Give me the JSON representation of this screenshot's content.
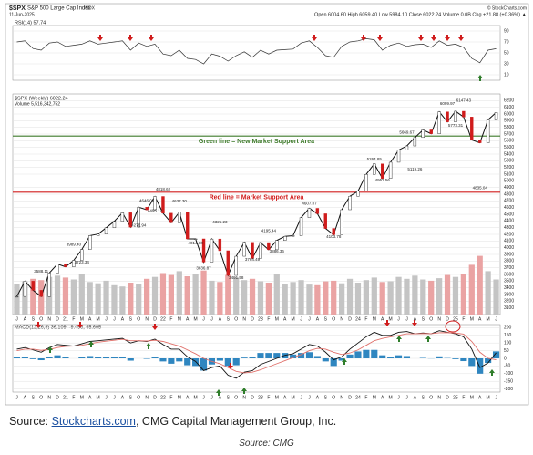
{
  "header": {
    "symbol": "$SPX",
    "name": "S&P 500 Large Cap Index",
    "exchange": "INDX",
    "date": "11-Jun-2025",
    "credit": "© StockCharts.com",
    "quote": "Open 6004.60 High 6059.40 Low 5984.10 Close 6022.24 Volume 0.0B Chg +21.88 (+0.36%) ▲"
  },
  "chart_data": [
    {
      "type": "line",
      "title": "RSI(14) 57.74",
      "color": "#333333",
      "values": [
        70,
        72,
        58,
        55,
        68,
        70,
        62,
        64,
        66,
        72,
        66,
        68,
        70,
        72,
        55,
        68,
        62,
        66,
        48,
        45,
        55,
        40,
        38,
        30,
        48,
        44,
        35,
        45,
        52,
        42,
        55,
        48,
        55,
        56,
        57,
        68,
        72,
        60,
        45,
        42,
        62,
        70,
        72,
        76,
        74,
        55,
        64,
        68,
        62,
        65,
        66,
        60,
        72,
        64,
        66,
        60,
        40,
        32,
        55,
        57.74
      ],
      "ylim": [
        0,
        100
      ],
      "yticks": [
        10,
        30,
        50,
        70,
        90
      ]
    },
    {
      "type": "line",
      "title": "$SPX (Weekly) 6022.24",
      "subtitle": "Volume 5,516,342,752",
      "color": "#111111",
      "categories": [
        "J",
        "A",
        "S",
        "O",
        "N",
        "D",
        "21",
        "F",
        "M",
        "A",
        "M",
        "J",
        "J",
        "A",
        "S",
        "O",
        "N",
        "D",
        "22",
        "F",
        "M",
        "A",
        "M",
        "J",
        "J",
        "A",
        "S",
        "O",
        "N",
        "D",
        "23",
        "F",
        "M",
        "A",
        "M",
        "J",
        "J",
        "A",
        "S",
        "O",
        "N",
        "D",
        "24",
        "F",
        "M",
        "A",
        "M",
        "J",
        "J",
        "A",
        "S",
        "O",
        "N",
        "D",
        "25",
        "F",
        "M",
        "A",
        "M",
        "J"
      ],
      "values": [
        3271,
        3500,
        3363,
        3270,
        3622,
        3756,
        3714,
        3811,
        3973,
        4181,
        4204,
        4298,
        4395,
        4523,
        4308,
        4605,
        4567,
        4766,
        4516,
        4374,
        4530,
        4132,
        4132,
        3785,
        4130,
        3955,
        3586,
        3872,
        4080,
        3840,
        4077,
        3970,
        4109,
        4169,
        4180,
        4450,
        4589,
        4508,
        4288,
        4194,
        4568,
        4770,
        4846,
        5096,
        5254,
        5036,
        5278,
        5460,
        5522,
        5648,
        5762,
        5705,
        6032,
        5882,
        6041,
        5955,
        5612,
        5569,
        5912,
        6022.24
      ],
      "volume": [
        4.8,
        5.2,
        5.6,
        5.4,
        5.9,
        6.1,
        5.8,
        5.5,
        6.4,
        5.1,
        4.9,
        5.3,
        4.6,
        4.4,
        5.0,
        4.8,
        5.6,
        5.9,
        6.5,
        6.2,
        6.8,
        6.0,
        6.4,
        6.9,
        5.3,
        5.1,
        6.2,
        5.8,
        5.4,
        5.6,
        5.2,
        5.0,
        6.3,
        4.8,
        5.1,
        5.4,
        4.7,
        4.6,
        5.2,
        5.3,
        4.9,
        5.6,
        5.0,
        5.4,
        5.8,
        5.1,
        5.2,
        5.9,
        5.6,
        6.1,
        5.5,
        5.3,
        5.7,
        6.2,
        5.9,
        6.3,
        7.8,
        9.2,
        6.8,
        5.5
      ],
      "ylim": [
        3000,
        6300
      ],
      "yticks": [
        3100,
        3200,
        3300,
        3400,
        3500,
        3600,
        3700,
        3800,
        3900,
        4000,
        4100,
        4200,
        4300,
        4400,
        4500,
        4600,
        4700,
        4800,
        4900,
        5000,
        5100,
        5200,
        5300,
        5400,
        5500,
        5600,
        5700,
        5800,
        5900,
        6000,
        6100,
        6200
      ],
      "annotations": [
        3588.11,
        {
          "value": 3989.4,
          "label": "3989.40"
        },
        3723.34,
        4646.05,
        4276.94,
        4495.12,
        4818.62,
        {
          "value": 4637.3,
          "label": "4637.30"
        },
        {
          "value": 4014.6,
          "label": "4014.60"
        },
        3636.87,
        4325.23,
        3491.58,
        3764.49,
        4195.44,
        3886.36,
        4607.07,
        4103.78,
        5264.85,
        4953.56,
        5669.67,
        5119.26,
        6099.97,
        6147.43,
        5773.31,
        4835.04
      ],
      "reference_lines": [
        {
          "label": "Green line = New Market Support Area",
          "value": 5670,
          "color": "#3d7a2a"
        },
        {
          "label": "Red line = Market Support Area",
          "value": 4830,
          "color": "#d01c1c"
        }
      ]
    },
    {
      "type": "macd",
      "title": "MACD(12,26,9) 36.109, -9.496, 45.605",
      "series": [
        {
          "color": "#111111",
          "values": [
            60,
            70,
            55,
            40,
            70,
            90,
            85,
            80,
            95,
            110,
            115,
            120,
            125,
            130,
            100,
            115,
            110,
            125,
            90,
            60,
            60,
            10,
            -20,
            -80,
            -60,
            -50,
            -110,
            -130,
            -90,
            -80,
            -40,
            -20,
            0,
            20,
            30,
            60,
            90,
            80,
            40,
            -10,
            10,
            60,
            100,
            140,
            170,
            150,
            150,
            170,
            175,
            160,
            165,
            160,
            180,
            170,
            160,
            140,
            60,
            -60,
            -30,
            36.109
          ]
        },
        {
          "color": "#e0706a",
          "values": [
            50,
            60,
            60,
            52,
            58,
            70,
            78,
            80,
            85,
            95,
            105,
            112,
            118,
            124,
            115,
            115,
            113,
            118,
            110,
            95,
            80,
            55,
            30,
            0,
            -20,
            -35,
            -60,
            -85,
            -95,
            -90,
            -75,
            -55,
            -35,
            -15,
            5,
            25,
            50,
            65,
            60,
            40,
            25,
            35,
            55,
            85,
            115,
            130,
            140,
            150,
            160,
            160,
            162,
            161,
            167,
            168,
            165,
            158,
            110,
            40,
            0,
            -9.496
          ]
        },
        {
          "type": "bar",
          "color": "#2f86c0",
          "values": [
            10,
            10,
            -5,
            -12,
            12,
            20,
            7,
            0,
            10,
            15,
            10,
            8,
            7,
            6,
            -15,
            0,
            -3,
            7,
            -20,
            -35,
            -20,
            -45,
            -50,
            -80,
            -40,
            -15,
            -50,
            -45,
            5,
            10,
            35,
            35,
            35,
            35,
            25,
            35,
            40,
            15,
            -20,
            -50,
            -15,
            25,
            45,
            55,
            55,
            20,
            10,
            20,
            15,
            0,
            3,
            -1,
            13,
            2,
            -5,
            -18,
            -50,
            -100,
            -30,
            45.605
          ]
        }
      ],
      "ylim": [
        -220,
        220
      ],
      "yticks": [
        -200,
        -150,
        -100,
        -50,
        0,
        50,
        100,
        150,
        200
      ]
    }
  ],
  "footer": {
    "prefix": "Source:",
    "link": "Stockcharts.com",
    "suffix": ", CMG Capital Management Group, Inc.",
    "caption": "Source: CMG"
  }
}
